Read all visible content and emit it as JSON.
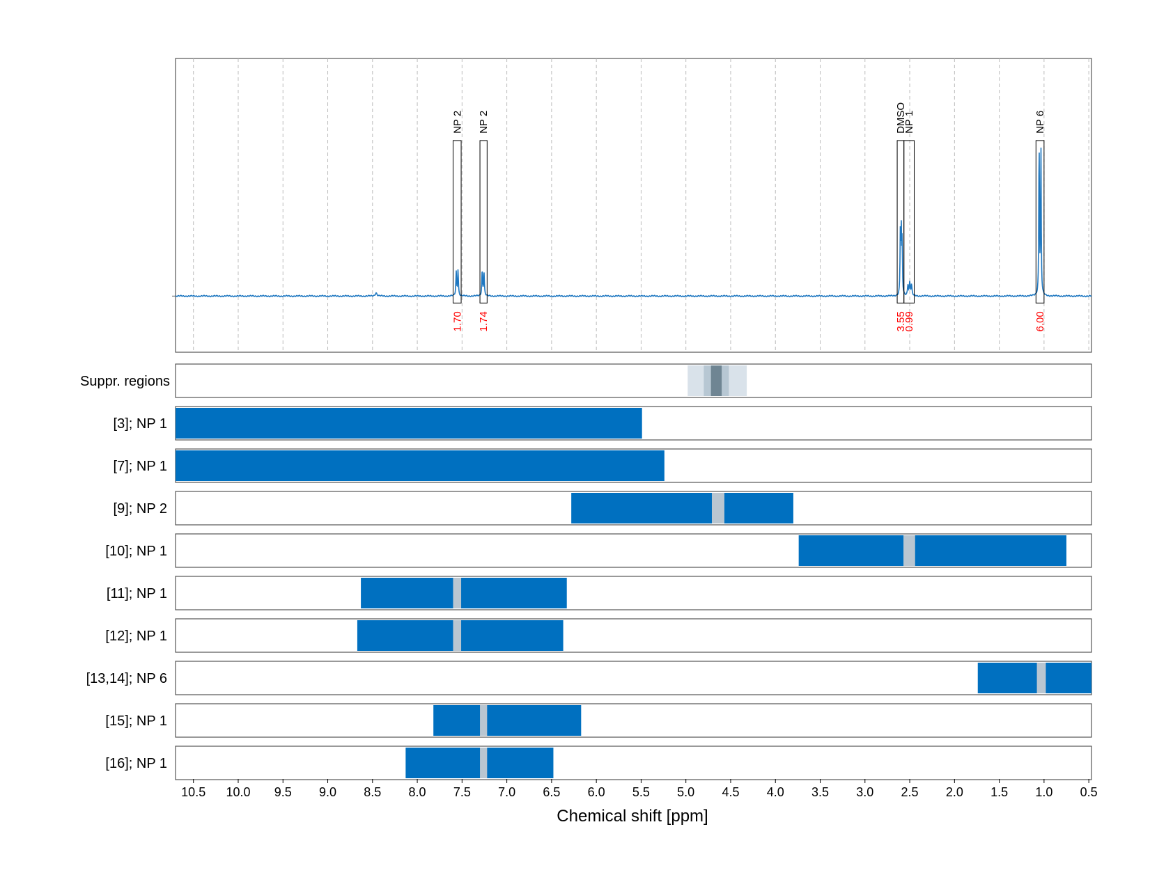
{
  "chart_data": {
    "type": "nmr-spectrum",
    "xlabel": "Chemical shift [ppm]",
    "xlim": [
      10.7,
      0.47
    ],
    "x_ticks": [
      "10.5",
      "10.0",
      "9.5",
      "9.0",
      "8.5",
      "8.0",
      "7.5",
      "7.0",
      "6.5",
      "6.0",
      "5.5",
      "5.0",
      "4.5",
      "4.0",
      "3.5",
      "3.0",
      "2.5",
      "2.0",
      "1.5",
      "1.0",
      "0.5"
    ],
    "colors": {
      "spectrum": "#1f78c1",
      "bar": "#0070c0",
      "integral": "#ff0000",
      "suppressed_light": "#d9e2ea",
      "suppressed_mid": "#b7c7d3",
      "suppressed_dark": "#6f8593",
      "gap": "#b9c6d1"
    },
    "spectrum": {
      "baseline": 0,
      "ylim": [
        -0.26,
        1.1
      ],
      "peaks": [
        {
          "ppm": 8.46,
          "height": 0.015,
          "width": 0.012
        },
        {
          "ppm": 7.565,
          "height": 0.11,
          "width": 0.005
        },
        {
          "ppm": 7.545,
          "height": 0.12,
          "width": 0.005
        },
        {
          "ppm": 7.275,
          "height": 0.12,
          "width": 0.005
        },
        {
          "ppm": 7.255,
          "height": 0.11,
          "width": 0.005
        },
        {
          "ppm": 2.605,
          "height": 0.28,
          "width": 0.004
        },
        {
          "ppm": 2.595,
          "height": 0.3,
          "width": 0.004
        },
        {
          "ppm": 2.585,
          "height": 0.24,
          "width": 0.004
        },
        {
          "ppm": 2.52,
          "height": 0.05,
          "width": 0.006
        },
        {
          "ppm": 2.5,
          "height": 0.06,
          "width": 0.006
        },
        {
          "ppm": 2.48,
          "height": 0.05,
          "width": 0.006
        },
        {
          "ppm": 1.055,
          "height": 0.73,
          "width": 0.004
        },
        {
          "ppm": 1.035,
          "height": 0.7,
          "width": 0.004
        }
      ]
    },
    "annotations": [
      {
        "label": "NP 2",
        "left": 7.6,
        "right": 7.51,
        "top": 0.72,
        "integral": "1.70"
      },
      {
        "label": "NP 2",
        "left": 7.3,
        "right": 7.22,
        "top": 0.72,
        "integral": "1.74"
      },
      {
        "label": "DMSO",
        "left": 2.64,
        "right": 2.565,
        "top": 0.72,
        "integral": "3.55"
      },
      {
        "label": "NP 1",
        "left": 2.565,
        "right": 2.45,
        "top": 0.72,
        "integral": "0.99"
      },
      {
        "label": "NP 6",
        "left": 1.09,
        "right": 1.0,
        "top": 0.72,
        "integral": "6.00"
      }
    ],
    "suppressed_regions": {
      "label": "Suppr. regions",
      "bands": [
        {
          "from": 4.98,
          "to": 4.32,
          "shade": "light"
        },
        {
          "from": 4.8,
          "to": 4.52,
          "shade": "mid"
        },
        {
          "from": 4.72,
          "to": 4.6,
          "shade": "dark"
        }
      ]
    },
    "rows": [
      {
        "label": "[3]; NP 1",
        "from": 10.7,
        "to": 5.49,
        "gaps": []
      },
      {
        "label": "[7]; NP 1",
        "from": 10.7,
        "to": 5.24,
        "gaps": []
      },
      {
        "label": "[9]; NP 2",
        "from": 6.28,
        "to": 3.8,
        "gaps": [
          [
            4.71,
            4.57
          ]
        ]
      },
      {
        "label": "[10]; NP 1",
        "from": 3.74,
        "to": 0.75,
        "gaps": [
          [
            2.57,
            2.44
          ]
        ]
      },
      {
        "label": "[11]; NP 1",
        "from": 8.63,
        "to": 6.33,
        "gaps": [
          [
            7.6,
            7.51
          ]
        ]
      },
      {
        "label": "[12]; NP 1",
        "from": 8.67,
        "to": 6.37,
        "gaps": [
          [
            7.6,
            7.51
          ]
        ]
      },
      {
        "label": "[13,14]; NP 6",
        "from": 1.74,
        "to": 0.47,
        "gaps": [
          [
            1.08,
            0.98
          ]
        ]
      },
      {
        "label": "[15]; NP 1",
        "from": 7.82,
        "to": 6.17,
        "gaps": [
          [
            7.3,
            7.22
          ]
        ]
      },
      {
        "label": "[16]; NP 1",
        "from": 8.13,
        "to": 6.48,
        "gaps": [
          [
            7.3,
            7.22
          ]
        ]
      }
    ]
  }
}
